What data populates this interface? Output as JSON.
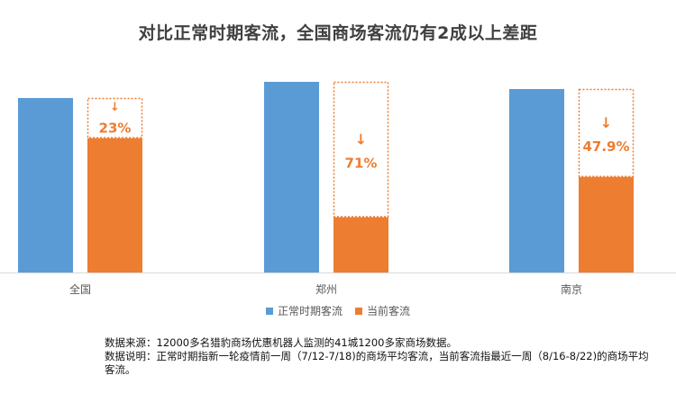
{
  "chart_data": {
    "type": "bar",
    "title": "对比正常时期客流，全国商场客流仍有2成以上差距",
    "categories": [
      "全国",
      "郑州",
      "南京"
    ],
    "series": [
      {
        "name": "正常时期客流",
        "color": "#5B9BD5",
        "values": [
          100,
          100,
          100
        ]
      },
      {
        "name": "当前客流",
        "color": "#ED7D31",
        "values": [
          77,
          29,
          52.1
        ]
      }
    ],
    "gap_labels": [
      "23%",
      "71%",
      "47.9%"
    ],
    "gap_arrow": "↓",
    "ylim": [
      0,
      100
    ],
    "legend_position": "bottom",
    "grid": false
  },
  "notes": {
    "source": "数据来源：12000多名猎豹商场优惠机器人监测的41城1200多家商场数据。",
    "explanation": "数据说明：正常时期指新一轮疫情前一周（7/12-7/18)的商场平均客流，当前客流指最近一周（8/16-8/22)的商场平均客流。"
  }
}
